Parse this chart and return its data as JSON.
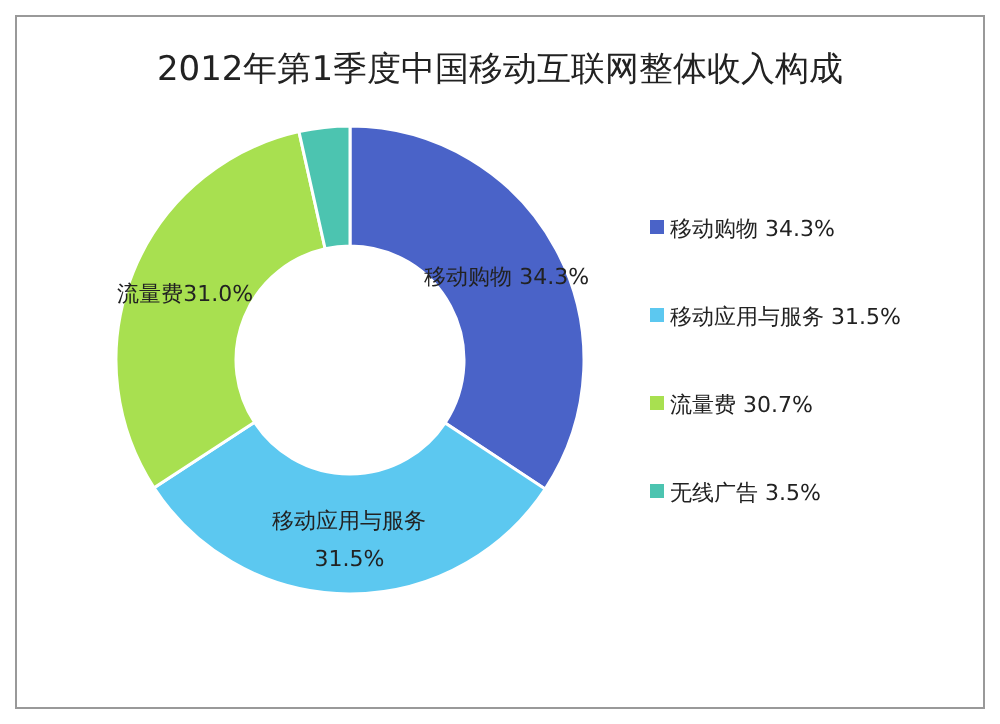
{
  "chart_data": {
    "type": "donut",
    "title": "2012年第1季度中国移动互联网整体收入构成",
    "categories": [
      "移动购物  34.3%",
      "移动应用与服务  31.5%",
      "流量费  30.7%",
      "无线广告  3.5%"
    ],
    "values": [
      34.3,
      31.5,
      30.7,
      3.5
    ],
    "colors": [
      "#4a63c8",
      "#5cc8f0",
      "#a8e050",
      "#4cc4b0"
    ],
    "value_labels": [
      "移动购物  34.3%",
      "移动应用与服务\n31.5%",
      "流量费31.0%",
      null
    ],
    "legend": "right"
  }
}
